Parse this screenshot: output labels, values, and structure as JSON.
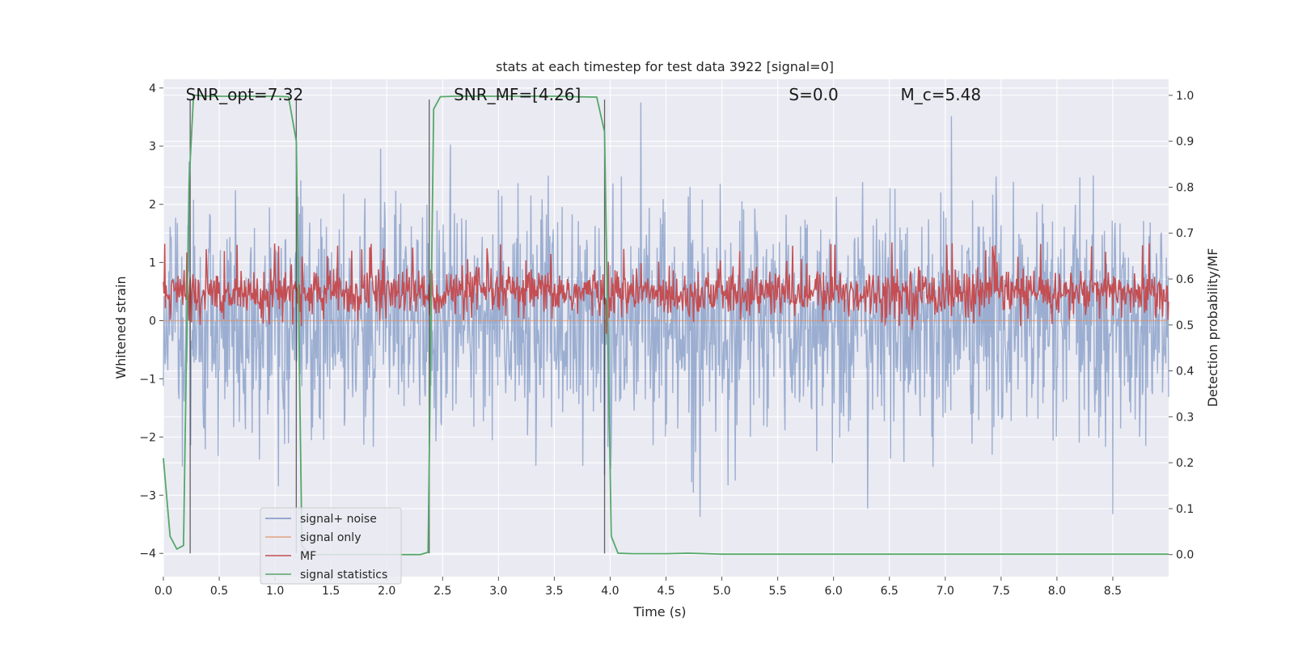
{
  "chart_data": {
    "type": "line",
    "title": "stats at each timestep for test data 3922 [signal=0]",
    "xlabel": "Time (s)",
    "ylabel_left": "Whitened strain",
    "ylabel_right": "Detection probability/MF",
    "xlim": [
      0.0,
      9.0
    ],
    "ylim_left": [
      -4.4,
      4.15
    ],
    "ylim_right": [
      -0.048,
      1.035
    ],
    "x_ticks": [
      "0.0",
      "0.5",
      "1.0",
      "1.5",
      "2.0",
      "2.5",
      "3.0",
      "3.5",
      "4.0",
      "4.5",
      "5.0",
      "5.5",
      "6.0",
      "6.5",
      "7.0",
      "7.5",
      "8.0",
      "8.5"
    ],
    "x_tick_values": [
      0.0,
      0.5,
      1.0,
      1.5,
      2.0,
      2.5,
      3.0,
      3.5,
      4.0,
      4.5,
      5.0,
      5.5,
      6.0,
      6.5,
      7.0,
      7.5,
      8.0,
      8.5
    ],
    "y_left_ticks": [
      "−4",
      "−3",
      "−2",
      "−1",
      "0",
      "1",
      "2",
      "3",
      "4"
    ],
    "y_left_tick_values": [
      -4,
      -3,
      -2,
      -1,
      0,
      1,
      2,
      3,
      4
    ],
    "y_right_ticks": [
      "0.0",
      "0.1",
      "0.2",
      "0.3",
      "0.4",
      "0.5",
      "0.6",
      "0.7",
      "0.8",
      "0.9",
      "1.0"
    ],
    "y_right_tick_values": [
      0.0,
      0.1,
      0.2,
      0.3,
      0.4,
      0.5,
      0.6,
      0.7,
      0.8,
      0.9,
      1.0
    ],
    "grid": true,
    "legend_placement": "lower-left",
    "annotations": [
      {
        "text": "SNR_opt=7.32",
        "x": 0.2
      },
      {
        "text": "SNR_MF=[4.26]",
        "x": 2.6
      },
      {
        "text": "S=0.0",
        "x": 5.6
      },
      {
        "text": "M_c=5.48",
        "x": 6.6
      }
    ],
    "vertical_markers": [
      0.24,
      1.19,
      2.38,
      3.95
    ],
    "series": [
      {
        "name": "signal+ noise",
        "color": "#4c72b0",
        "kind": "noise",
        "amplitude_range": [
          -4.0,
          3.75
        ],
        "typical_sigma": 1.0
      },
      {
        "name": "signal only",
        "color": "#dd8452",
        "kind": "flat",
        "values": "0"
      },
      {
        "name": "MF",
        "color": "#c44e52",
        "kind": "noise",
        "axis": "right",
        "range": [
          0.51,
          0.63
        ]
      },
      {
        "name": "signal statistics",
        "color": "#55a868",
        "axis": "right",
        "x": [
          0.0,
          0.06,
          0.12,
          0.18,
          0.23,
          0.27,
          0.31,
          0.36,
          0.5,
          0.8,
          1.0,
          1.12,
          1.19,
          1.24,
          1.3,
          1.6,
          2.0,
          2.3,
          2.37,
          2.42,
          2.48,
          2.6,
          3.0,
          3.5,
          3.88,
          3.95,
          4.01,
          4.07,
          4.2,
          4.5,
          4.7,
          5.0,
          6.0,
          7.0,
          8.0,
          9.0
        ],
        "values": [
          0.21,
          0.04,
          0.012,
          0.02,
          0.81,
          1.0,
          1.0,
          0.998,
          0.998,
          0.998,
          0.998,
          0.997,
          0.9,
          0.02,
          0.0,
          0.0,
          0.0,
          0.0,
          0.005,
          0.97,
          0.997,
          0.998,
          0.998,
          0.998,
          0.996,
          0.92,
          0.04,
          0.003,
          0.002,
          0.002,
          0.003,
          0.001,
          0.001,
          0.001,
          0.001,
          0.001
        ]
      }
    ]
  }
}
